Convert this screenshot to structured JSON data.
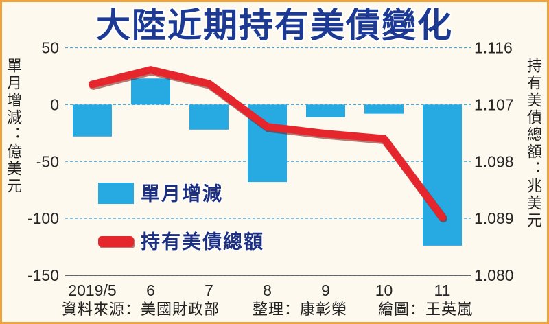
{
  "chart_data": {
    "type": "bar",
    "title": "大陸近期持有美債變化",
    "categories": [
      "2019/5",
      "6",
      "7",
      "8",
      "9",
      "10",
      "11"
    ],
    "series": [
      {
        "name": "單月增減",
        "type": "bar",
        "axis": "left",
        "color": "#27a9e1",
        "values": [
          -28,
          23,
          -22,
          -68,
          -11,
          -8,
          -124
        ]
      },
      {
        "name": "持有美債總額",
        "type": "line",
        "axis": "right",
        "color": "#e5262c",
        "values": [
          1.1102,
          1.1125,
          1.1103,
          1.1035,
          1.1024,
          1.1016,
          1.0892
        ]
      }
    ],
    "y_left": {
      "label": "單月增減：億美元",
      "range": [
        -150,
        50
      ],
      "ticks": [
        "50",
        "0",
        "-50",
        "-100",
        "-150"
      ]
    },
    "y_right": {
      "label": "持有美債總額：兆美元",
      "range": [
        1.08,
        1.116
      ],
      "ticks": [
        "1.116",
        "1.107",
        "1.098",
        "1.089",
        "1.080"
      ]
    },
    "grid": true,
    "legend": "inside-left"
  },
  "credits": {
    "source": "資料來源：美國財政部",
    "compiled_by": "整理：康彰榮",
    "graphic_by": "繪圖：王英嵐"
  }
}
